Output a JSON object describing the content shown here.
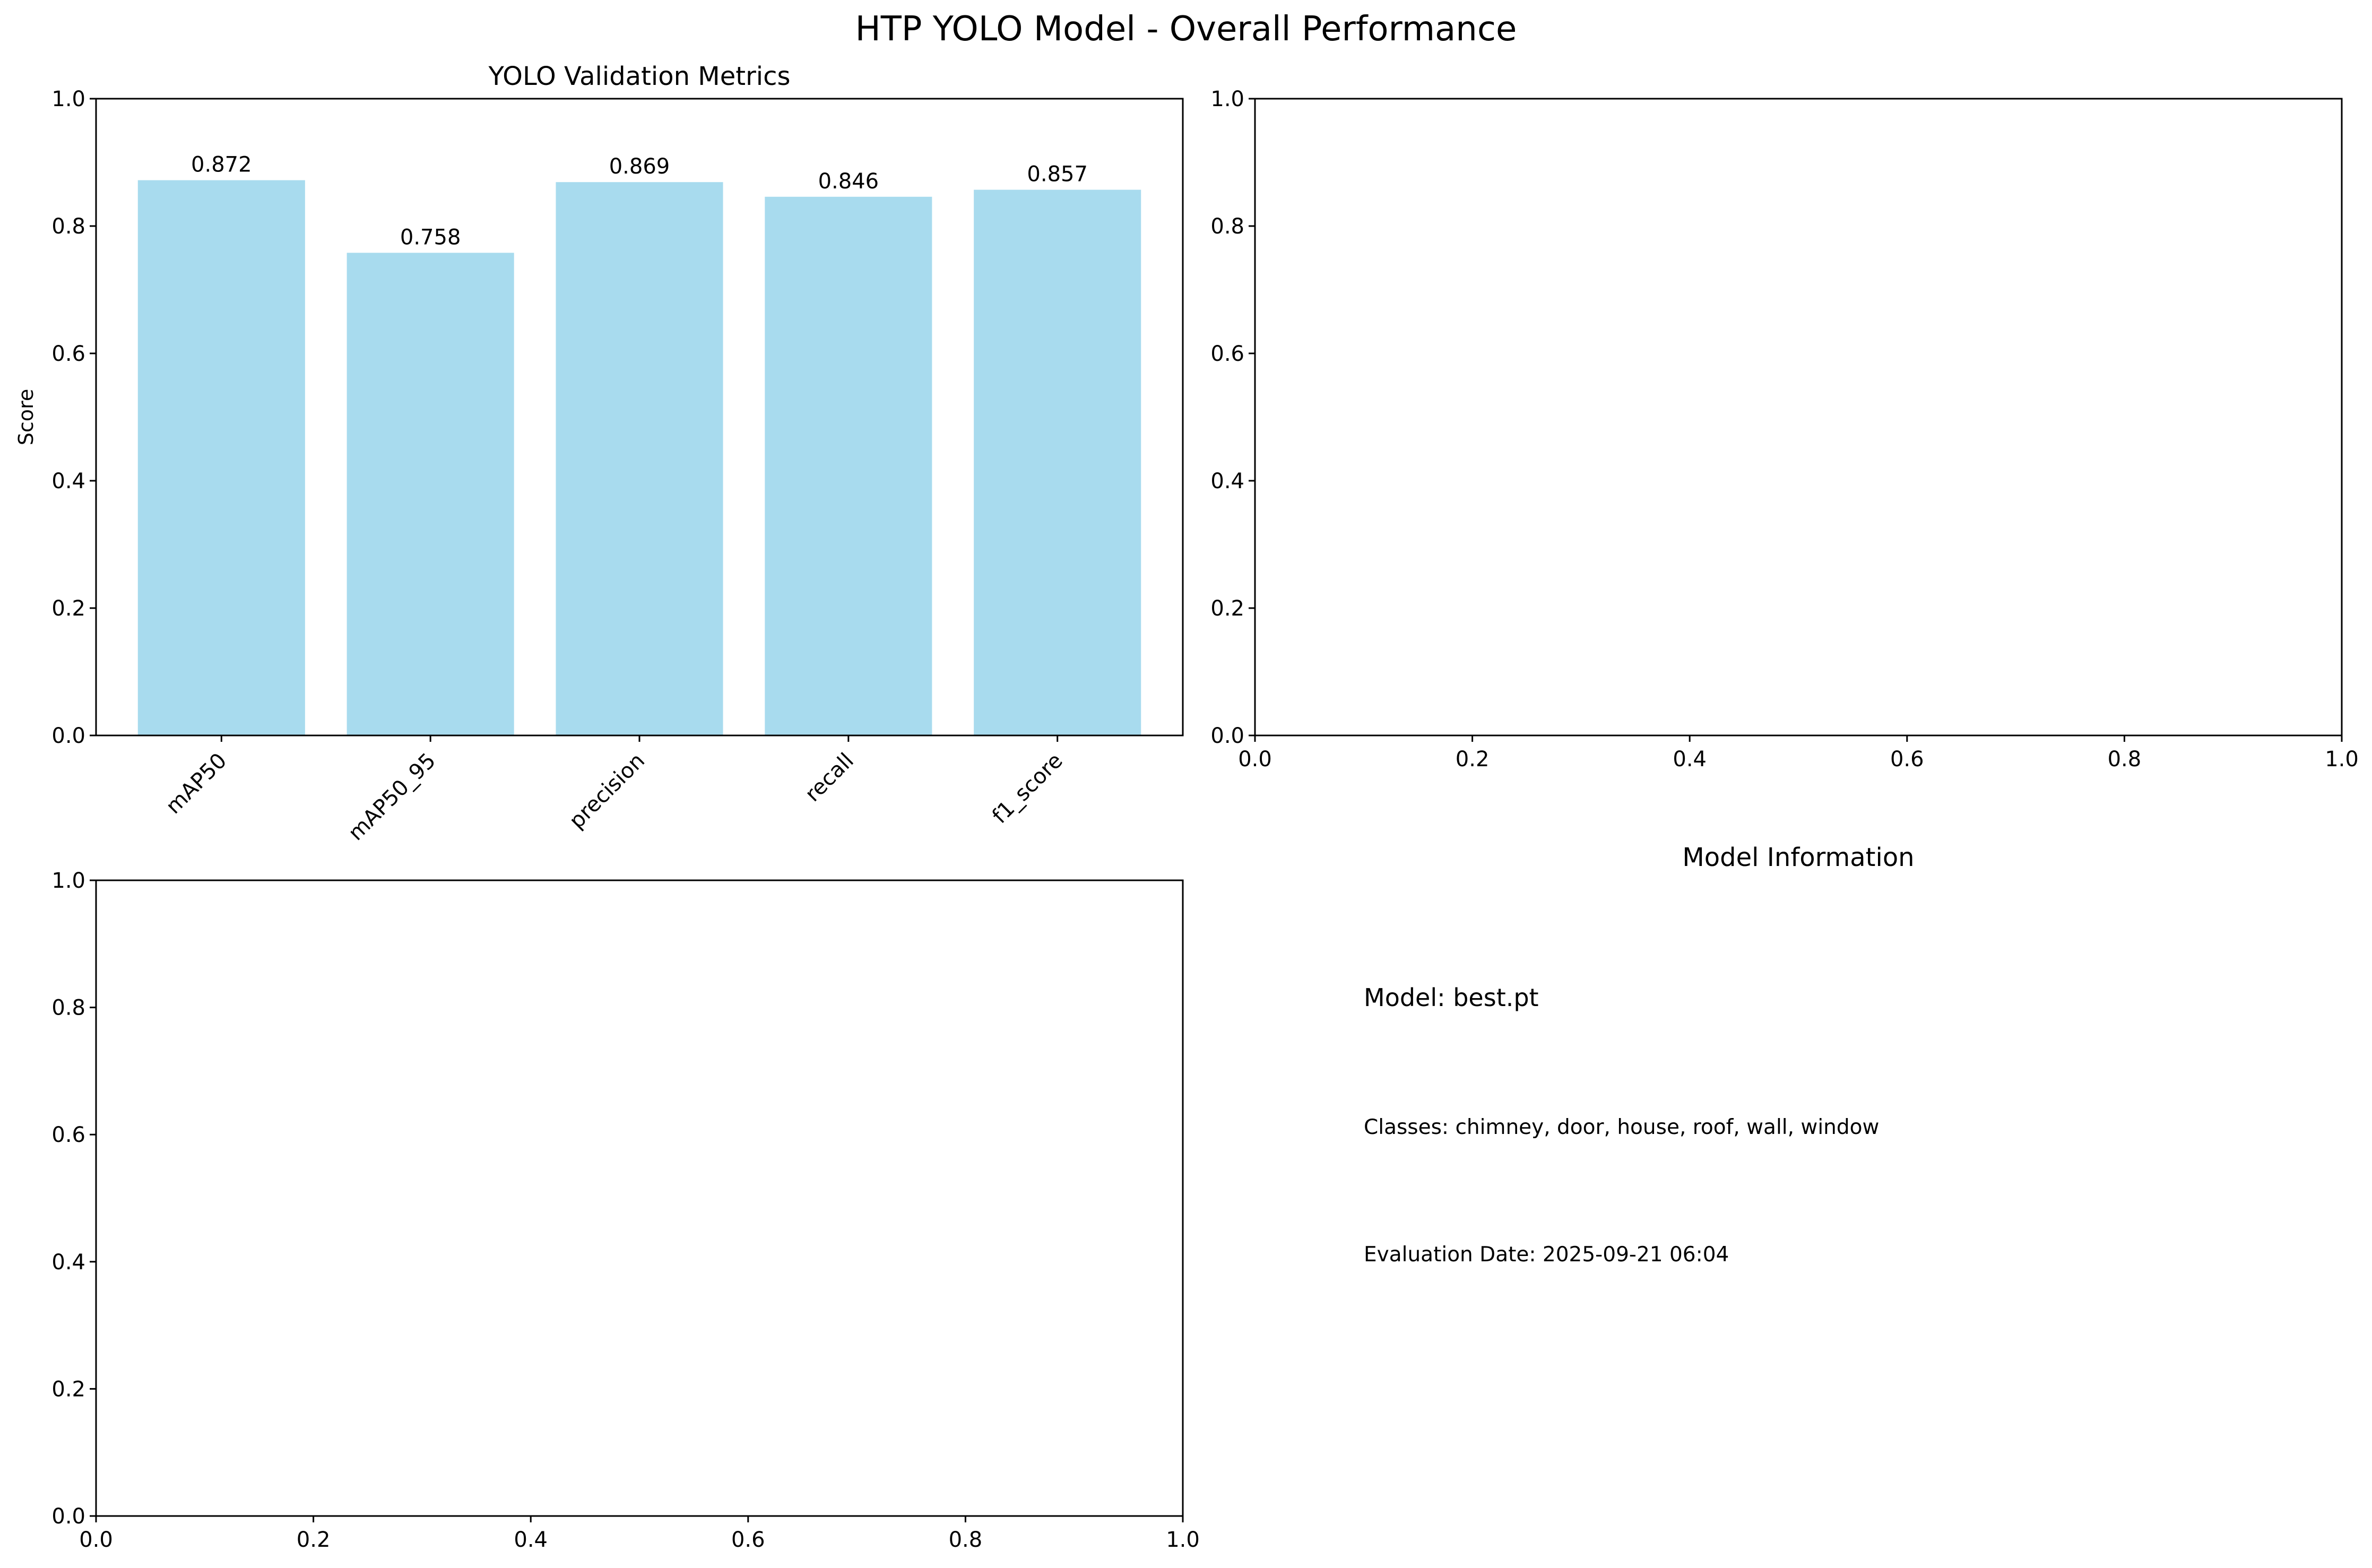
{
  "figure": {
    "title": "HTP YOLO Model - Overall Performance"
  },
  "chart_data": [
    {
      "panel": "top-left",
      "type": "bar",
      "title": "YOLO Validation Metrics",
      "xlabel": "",
      "ylabel": "Score",
      "categories": [
        "mAP50",
        "mAP50_95",
        "precision",
        "recall",
        "f1_score"
      ],
      "values": [
        0.872,
        0.758,
        0.869,
        0.846,
        0.857
      ],
      "value_labels": [
        "0.872",
        "0.758",
        "0.869",
        "0.846",
        "0.857"
      ],
      "ylim": [
        0,
        1.0
      ],
      "yticks": [
        "0.0",
        "0.2",
        "0.4",
        "0.6",
        "0.8",
        "1.0"
      ],
      "grid": false,
      "bar_color": "#a8dbee",
      "tick_rotation_deg": 45
    },
    {
      "panel": "top-right",
      "type": "line",
      "title": "",
      "series": [],
      "xlim": [
        0,
        1.0
      ],
      "ylim": [
        0,
        1.0
      ],
      "xticks": [
        "0.0",
        "0.2",
        "0.4",
        "0.6",
        "0.8",
        "1.0"
      ],
      "yticks": [
        "0.0",
        "0.2",
        "0.4",
        "0.6",
        "0.8",
        "1.0"
      ],
      "grid": false
    },
    {
      "panel": "bottom-left",
      "type": "line",
      "title": "",
      "series": [],
      "xlim": [
        0,
        1.0
      ],
      "ylim": [
        0,
        1.0
      ],
      "xticks": [
        "0.0",
        "0.2",
        "0.4",
        "0.6",
        "0.8",
        "1.0"
      ],
      "yticks": [
        "0.0",
        "0.2",
        "0.4",
        "0.6",
        "0.8",
        "1.0"
      ],
      "grid": false
    }
  ],
  "info_panel": {
    "title": "Model Information",
    "model_line": "Model: best.pt",
    "classes_line": "Classes: chimney, door, house, roof, wall, window",
    "date_line": "Evaluation Date: 2025-09-21 06:04"
  }
}
